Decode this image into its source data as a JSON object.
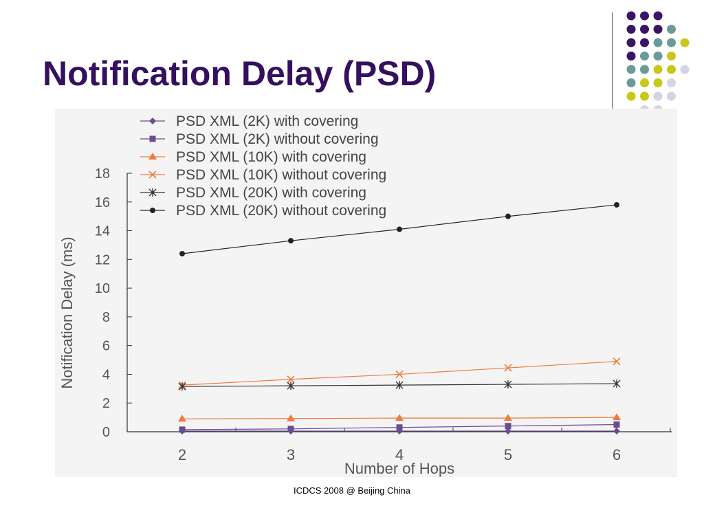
{
  "slide": {
    "title": "Notification Delay (PSD)",
    "footer": "ICDCS 2008 @ Beijing China"
  },
  "decor": {
    "dot_colors": {
      "purple": "#3b1466",
      "teal": "#6b9a9a",
      "yellow": "#c8c81a",
      "lavender": "#d4d4e6"
    },
    "dot_rows": [
      [
        "purple",
        "purple",
        "purple"
      ],
      [
        "purple",
        "purple",
        "purple",
        "teal"
      ],
      [
        "purple",
        "purple",
        "teal",
        "teal",
        "yellow"
      ],
      [
        "purple",
        "teal",
        "teal",
        "yellow"
      ],
      [
        "teal",
        "teal",
        "yellow",
        "yellow",
        "lavender"
      ],
      [
        "teal",
        "yellow",
        "yellow",
        "lavender"
      ],
      [
        "yellow",
        "yellow",
        "lavender",
        "lavender"
      ],
      [
        "lavender",
        "lavender"
      ]
    ]
  },
  "chart_data": {
    "type": "line",
    "xlabel": "Number of Hops",
    "ylabel": "Notification Delay (ms)",
    "x": [
      2,
      3,
      4,
      5,
      6
    ],
    "xlim": [
      2,
      6
    ],
    "ylim": [
      0,
      18
    ],
    "yticks": [
      0,
      2,
      4,
      6,
      8,
      10,
      12,
      14,
      16,
      18
    ],
    "legend_position": "top-left",
    "grid": false,
    "series": [
      {
        "name": "PSD XML (2K) with covering",
        "values": [
          0.05,
          0.05,
          0.05,
          0.05,
          0.05
        ],
        "color": "#6a4c93",
        "marker": "diamond"
      },
      {
        "name": "PSD XML (2K) without covering",
        "values": [
          0.15,
          0.2,
          0.3,
          0.4,
          0.5
        ],
        "color": "#6a4c93",
        "marker": "square"
      },
      {
        "name": "PSD XML (10K) with covering",
        "values": [
          0.9,
          0.92,
          0.95,
          0.95,
          1.0
        ],
        "color": "#f07a3c",
        "marker": "triangle"
      },
      {
        "name": "PSD XML (10K) without covering",
        "values": [
          3.25,
          3.65,
          4.0,
          4.45,
          4.9
        ],
        "color": "#f07a3c",
        "marker": "x"
      },
      {
        "name": "PSD XML (20K) with covering",
        "values": [
          3.15,
          3.2,
          3.25,
          3.3,
          3.35
        ],
        "color": "#333333",
        "marker": "star"
      },
      {
        "name": "PSD XML (20K) without covering",
        "values": [
          12.4,
          13.3,
          14.1,
          15.0,
          15.8
        ],
        "color": "#222222",
        "marker": "circle"
      }
    ]
  }
}
